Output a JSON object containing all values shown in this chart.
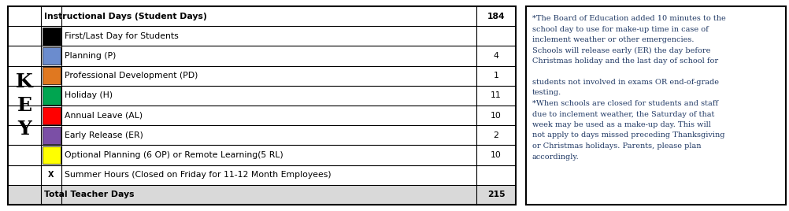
{
  "rows": [
    {
      "color": null,
      "label": "Instructional Days (Student Days)",
      "value": "184",
      "bold": true,
      "color_cell": false,
      "x_mark": false,
      "shaded": false
    },
    {
      "color": "#000000",
      "label": "First/Last Day for Students",
      "value": "",
      "bold": false,
      "color_cell": true,
      "x_mark": false,
      "shaded": false
    },
    {
      "color": "#6b8cce",
      "label": "Planning (P)",
      "value": "4",
      "bold": false,
      "color_cell": true,
      "x_mark": false,
      "shaded": false
    },
    {
      "color": "#e07820",
      "label": "Professional Development (PD)",
      "value": "1",
      "bold": false,
      "color_cell": true,
      "x_mark": false,
      "shaded": false
    },
    {
      "color": "#00a550",
      "label": "Holiday (H)",
      "value": "11",
      "bold": false,
      "color_cell": true,
      "x_mark": false,
      "shaded": false
    },
    {
      "color": "#ff0000",
      "label": "Annual Leave (AL)",
      "value": "10",
      "bold": false,
      "color_cell": true,
      "x_mark": false,
      "shaded": false
    },
    {
      "color": "#7b4fa6",
      "label": "Early Release (ER)",
      "value": "2",
      "bold": false,
      "color_cell": true,
      "x_mark": false,
      "shaded": false
    },
    {
      "color": "#ffff00",
      "label": "Optional Planning (6 OP) or Remote Learning(5 RL)",
      "value": "10",
      "bold": false,
      "color_cell": true,
      "x_mark": false,
      "shaded": false
    },
    {
      "color": null,
      "label": "Summer Hours (Closed on Friday for 11-12 Month Employees)",
      "value": "",
      "bold": false,
      "color_cell": false,
      "x_mark": true,
      "shaded": false
    },
    {
      "color": null,
      "label": "Total Teacher Days",
      "value": "215",
      "bold": true,
      "color_cell": false,
      "x_mark": false,
      "shaded": true
    }
  ],
  "note_lines": [
    "*The Board of Education added 10 minutes to the",
    "school day to use for make-up time in case of",
    "inclement weather or other emergencies.",
    "Schools will release early (ER) the day before",
    "Christmas holiday and the last day of school for",
    "",
    "students not involved in exams OR end-of-grade",
    "testing.",
    "*When schools are closed for students and staff",
    "due to inclement weather, the Saturday of that",
    "week may be used as a make-up day. This will",
    "not apply to days missed preceding Thanksgiving",
    "or Christmas holidays. Parents, please plan",
    "accordingly."
  ],
  "bg_color": "#ffffff",
  "border_color": "#000000",
  "shade_color": "#d9d9d9",
  "table_text_color": "#000000",
  "note_text_color": "#1f3864",
  "key_color": "#000000",
  "fig_width": 10.03,
  "fig_height": 2.68,
  "dpi": 100
}
